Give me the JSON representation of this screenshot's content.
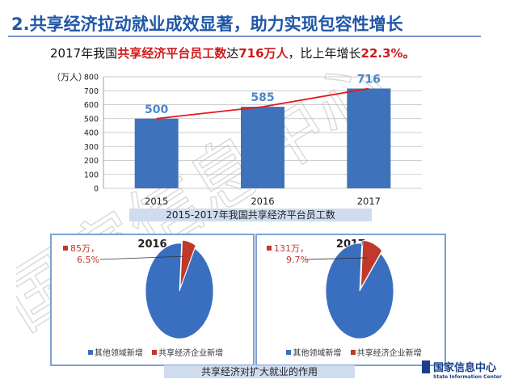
{
  "title": "2.共享经济拉动就业成效显著，助力实现包容性增长",
  "subtitle": {
    "p1": "2017年我国",
    "h1": "共享经济平台员工数",
    "p2": "达",
    "h2": "716万人",
    "p3": "，比上年增长",
    "h3": "22.3%。"
  },
  "watermark_text": "国家信息中心",
  "logo": {
    "cn": "国家信息中心",
    "en": "State Information Center"
  },
  "colors": {
    "title": "#1f56a8",
    "bar": "#3e73bc",
    "bar_label": "#4a87c9",
    "trend": "#e8161d",
    "pie_main": "#3a6fc0",
    "pie_slice": "#c0392b",
    "caption_bg": "#cfdcee"
  },
  "chart_data": [
    {
      "type": "bar",
      "unit_label": "（万人）",
      "categories": [
        "2015",
        "2016",
        "2017"
      ],
      "values": [
        500,
        585,
        716
      ],
      "data_labels": [
        "500",
        "585",
        "716"
      ],
      "ylim": [
        0,
        800
      ],
      "yticks": [
        "0",
        "100",
        "200",
        "300",
        "400",
        "500",
        "600",
        "700",
        "800"
      ],
      "grid": true,
      "trend_line": true,
      "caption": "2015-2017年我国共享经济平台员工数"
    },
    {
      "type": "pie",
      "year": "2016",
      "slices": [
        {
          "name": "其他领域新增",
          "percent": 93.5
        },
        {
          "name": "共享经济企业新增",
          "percent": 6.5
        }
      ],
      "callout": {
        "value": "85万，",
        "percent": "6.5%"
      }
    },
    {
      "type": "pie",
      "year": "2017",
      "slices": [
        {
          "name": "其他领域新增",
          "percent": 90.3
        },
        {
          "name": "共享经济企业新增",
          "percent": 9.7
        }
      ],
      "callout": {
        "value": "131万，",
        "percent": "9.7%"
      }
    }
  ],
  "pie_caption": "共享经济对扩大就业的作用",
  "legend": [
    "其他领域新增",
    "共享经济企业新增"
  ]
}
